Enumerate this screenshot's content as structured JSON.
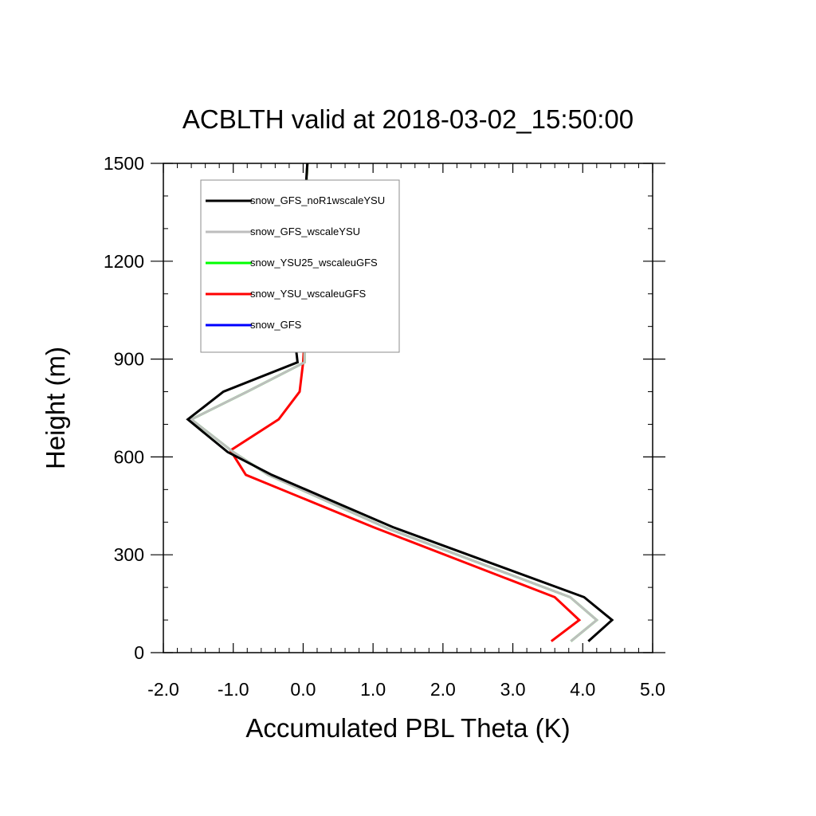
{
  "chart_data": {
    "type": "line",
    "title": "ACBLTH valid at 2018-03-02_15:50:00",
    "xlabel": "Accumulated PBL Theta (K)",
    "ylabel": "Height (m)",
    "xlim": [
      -2.0,
      5.0
    ],
    "ylim": [
      0,
      1500
    ],
    "xticks": [
      -2.0,
      -1.0,
      0.0,
      1.0,
      2.0,
      3.0,
      4.0,
      5.0
    ],
    "xtick_labels": [
      "-2.0",
      "-1.0",
      "0.0",
      "1.0",
      "2.0",
      "3.0",
      "4.0",
      "5.0"
    ],
    "yticks": [
      0,
      300,
      600,
      900,
      1200,
      1500
    ],
    "ytick_labels": [
      "0",
      "300",
      "600",
      "900",
      "1200",
      "1500"
    ],
    "grid": false,
    "legend_position": "top-left",
    "series": [
      {
        "name": "snow_GFS_noR1wscaleYSU",
        "color": "#000000",
        "points": [
          [
            4.08,
            35
          ],
          [
            4.42,
            100
          ],
          [
            4.02,
            170
          ],
          [
            1.28,
            385
          ],
          [
            -0.45,
            545
          ],
          [
            -1.08,
            615
          ],
          [
            -1.65,
            715
          ],
          [
            -1.14,
            800
          ],
          [
            -0.08,
            890
          ],
          [
            -0.12,
            965
          ],
          [
            0.0,
            1300
          ],
          [
            0.06,
            1500
          ]
        ]
      },
      {
        "name": "snow_GFS_wscaleYSU",
        "color": "#bebebe",
        "points": [
          [
            3.83,
            35
          ],
          [
            4.2,
            100
          ],
          [
            3.82,
            170
          ],
          [
            1.22,
            380
          ],
          [
            -0.5,
            545
          ],
          [
            -1.0,
            615
          ],
          [
            -1.6,
            715
          ],
          [
            -0.8,
            800
          ],
          [
            0.02,
            890
          ],
          [
            0.02,
            965
          ],
          [
            0.02,
            1300
          ],
          [
            0.06,
            1500
          ]
        ]
      },
      {
        "name": "snow_YSU25_wscaleuGFS",
        "color": "#00ff00",
        "points": [
          [
            3.83,
            35
          ],
          [
            4.2,
            100
          ],
          [
            3.82,
            170
          ],
          [
            1.22,
            380
          ],
          [
            -0.5,
            545
          ],
          [
            -1.0,
            615
          ],
          [
            -1.6,
            715
          ],
          [
            -0.8,
            800
          ],
          [
            0.02,
            890
          ],
          [
            0.02,
            965
          ],
          [
            0.02,
            1300
          ],
          [
            0.06,
            1500
          ]
        ]
      },
      {
        "name": "snow_YSU_wscaleuGFS",
        "color": "#ff0000",
        "points": [
          [
            3.55,
            35
          ],
          [
            3.95,
            100
          ],
          [
            3.6,
            170
          ],
          [
            1.0,
            385
          ],
          [
            -0.82,
            545
          ],
          [
            -1.04,
            620
          ],
          [
            -0.35,
            715
          ],
          [
            -0.05,
            800
          ],
          [
            0.0,
            890
          ],
          [
            0.02,
            965
          ],
          [
            0.02,
            1300
          ],
          [
            0.06,
            1500
          ]
        ]
      },
      {
        "name": "snow_GFS",
        "color": "#0000ff",
        "points": []
      }
    ]
  }
}
